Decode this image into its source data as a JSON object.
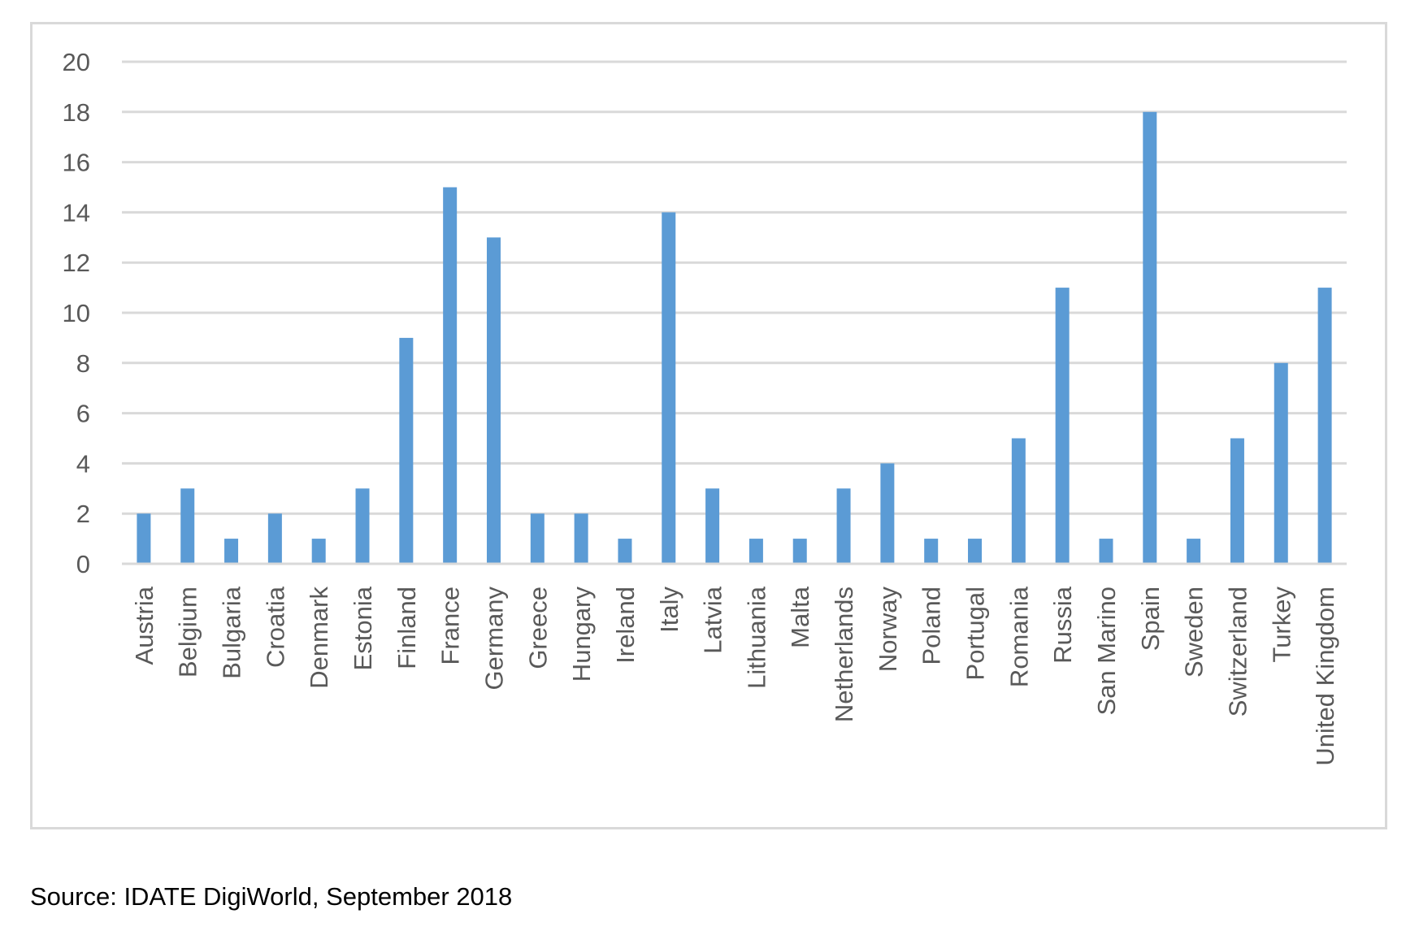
{
  "chart_data": {
    "type": "bar",
    "categories": [
      "Austria",
      "Belgium",
      "Bulgaria",
      "Croatia",
      "Denmark",
      "Estonia",
      "Finland",
      "France",
      "Germany",
      "Greece",
      "Hungary",
      "Ireland",
      "Italy",
      "Latvia",
      "Lithuania",
      "Malta",
      "Netherlands",
      "Norway",
      "Poland",
      "Portugal",
      "Romania",
      "Russia",
      "San Marino",
      "Spain",
      "Sweden",
      "Switzerland",
      "Turkey",
      "United Kingdom"
    ],
    "values": [
      2,
      3,
      1,
      2,
      1,
      3,
      9,
      15,
      13,
      2,
      2,
      1,
      14,
      3,
      1,
      1,
      3,
      4,
      1,
      1,
      5,
      11,
      1,
      18,
      1,
      5,
      8,
      11
    ],
    "yticks": [
      "0",
      "2",
      "4",
      "6",
      "8",
      "10",
      "12",
      "14",
      "16",
      "18",
      "20"
    ],
    "ylim": [
      0,
      20
    ],
    "grid": true,
    "legend": "none",
    "bar_color": "#5b9bd5",
    "grid_color": "#d9d9d9"
  },
  "source_note": "Source: IDATE DigiWorld, September 2018"
}
